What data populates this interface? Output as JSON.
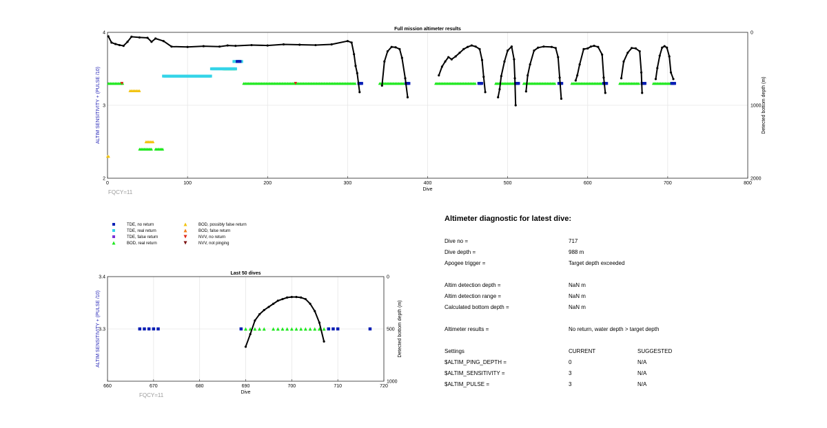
{
  "chart_data": [
    {
      "type": "scatter",
      "title": "Full mission altimeter results",
      "xlabel": "Dive",
      "ylabel": "ALTIM SENSITIVITY + (PULSE /10)",
      "ylabel_right": "Detected bottom depth (m)",
      "xlim": [
        0,
        800
      ],
      "ylim": [
        2,
        4
      ],
      "y2lim": [
        2000,
        0
      ],
      "xticks": [
        0,
        100,
        200,
        300,
        400,
        500,
        600,
        700,
        800
      ],
      "yticks": [
        2,
        3,
        4
      ],
      "y2ticks": [
        0,
        1000,
        2000
      ],
      "grid": true,
      "annotation": "FQCY=11",
      "depth_traces": [
        [
          [
            1,
            55
          ],
          [
            5,
            140
          ],
          [
            10,
            160
          ],
          [
            15,
            175
          ],
          [
            20,
            185
          ],
          [
            25,
            130
          ],
          [
            30,
            60
          ],
          [
            40,
            70
          ],
          [
            50,
            75
          ],
          [
            55,
            130
          ],
          [
            60,
            85
          ],
          [
            70,
            120
          ],
          [
            80,
            195
          ],
          [
            100,
            200
          ],
          [
            120,
            190
          ],
          [
            140,
            195
          ],
          [
            150,
            180
          ],
          [
            160,
            185
          ],
          [
            180,
            175
          ],
          [
            200,
            180
          ],
          [
            220,
            165
          ],
          [
            240,
            170
          ],
          [
            260,
            175
          ],
          [
            280,
            165
          ],
          [
            300,
            120
          ],
          [
            305,
            140
          ],
          [
            308,
            300
          ],
          [
            310,
            460
          ],
          [
            312,
            560
          ],
          [
            315,
            820
          ]
        ],
        [
          [
            343,
            730
          ],
          [
            346,
            400
          ],
          [
            350,
            260
          ],
          [
            355,
            200
          ],
          [
            360,
            205
          ],
          [
            365,
            230
          ],
          [
            368,
            350
          ],
          [
            372,
            630
          ],
          [
            375,
            890
          ]
        ],
        [
          [
            414,
            590
          ],
          [
            418,
            470
          ],
          [
            422,
            400
          ],
          [
            426,
            340
          ],
          [
            430,
            370
          ],
          [
            435,
            330
          ],
          [
            440,
            280
          ],
          [
            445,
            230
          ],
          [
            450,
            200
          ],
          [
            455,
            180
          ],
          [
            460,
            195
          ],
          [
            465,
            230
          ],
          [
            468,
            380
          ],
          [
            470,
            610
          ],
          [
            472,
            820
          ]
        ],
        [
          [
            488,
            890
          ],
          [
            490,
            780
          ],
          [
            492,
            600
          ],
          [
            496,
            400
          ],
          [
            500,
            250
          ],
          [
            505,
            195
          ],
          [
            508,
            370
          ],
          [
            509,
            630
          ],
          [
            510,
            1000
          ]
        ],
        [
          [
            523,
            810
          ],
          [
            525,
            590
          ],
          [
            528,
            440
          ],
          [
            533,
            250
          ],
          [
            538,
            210
          ],
          [
            545,
            195
          ],
          [
            555,
            200
          ],
          [
            560,
            215
          ],
          [
            563,
            340
          ],
          [
            565,
            620
          ],
          [
            567,
            910
          ]
        ],
        [
          [
            585,
            660
          ],
          [
            587,
            590
          ],
          [
            590,
            440
          ],
          [
            595,
            230
          ],
          [
            600,
            220
          ],
          [
            604,
            195
          ],
          [
            608,
            185
          ],
          [
            613,
            200
          ],
          [
            618,
            305
          ],
          [
            620,
            620
          ],
          [
            622,
            830
          ]
        ],
        [
          [
            642,
            630
          ],
          [
            645,
            400
          ],
          [
            650,
            280
          ],
          [
            655,
            215
          ],
          [
            660,
            220
          ],
          [
            665,
            260
          ],
          [
            667,
            550
          ],
          [
            668,
            830
          ]
        ],
        [
          [
            685,
            640
          ],
          [
            687,
            490
          ],
          [
            690,
            320
          ],
          [
            693,
            210
          ],
          [
            696,
            190
          ],
          [
            699,
            210
          ],
          [
            702,
            330
          ],
          [
            704,
            550
          ],
          [
            707,
            640
          ]
        ]
      ],
      "tde_no_return": [
        [
          314,
          3.3
        ],
        [
          373,
          3.3
        ],
        [
          464,
          3.3
        ],
        [
          510,
          3.3
        ],
        [
          564,
          3.3
        ],
        [
          620,
          3.3
        ],
        [
          668,
          3.3
        ],
        [
          705,
          3.3
        ],
        [
          162,
          3.6
        ]
      ],
      "tde_real_return_ranges": [
        [
          [
            70,
            130
          ],
          3.4
        ],
        [
          [
            130,
            160
          ],
          3.5
        ],
        [
          [
            158,
            168
          ],
          3.6
        ]
      ],
      "bod_real_return_ranges": [
        [
          [
            1,
            20
          ],
          3.3
        ],
        [
          [
            170,
            310
          ],
          3.3
        ],
        [
          [
            340,
            370
          ],
          3.3
        ],
        [
          [
            410,
            460
          ],
          3.3
        ],
        [
          [
            485,
            510
          ],
          3.3
        ],
        [
          [
            520,
            560
          ],
          3.3
        ],
        [
          [
            580,
            620
          ],
          3.3
        ],
        [
          [
            640,
            665
          ],
          3.3
        ],
        [
          [
            682,
            705
          ],
          3.3
        ],
        [
          [
            145,
            160
          ],
          3.5
        ],
        [
          [
            40,
            55
          ],
          2.4
        ],
        [
          [
            60,
            70
          ],
          2.4
        ]
      ],
      "bod_possibly_false_ranges": [
        [
          [
            28,
            40
          ],
          3.2
        ],
        [
          [
            48,
            58
          ],
          2.5
        ],
        [
          [
            0,
            2
          ],
          2.3
        ]
      ],
      "nvv_no_return": [
        [
          18,
          3.3
        ],
        [
          235,
          3.3
        ]
      ]
    },
    {
      "type": "scatter",
      "title": "Last 50 dives",
      "xlabel": "Dive",
      "ylabel": "ALTIM SENSITIVITY + (PULSE /10)",
      "ylabel_right": "Detected bottom depth (m)",
      "xlim": [
        660,
        720
      ],
      "ylim": [
        3.2,
        3.4
      ],
      "y2lim": [
        1000,
        0
      ],
      "xticks": [
        660,
        670,
        680,
        690,
        700,
        710,
        720
      ],
      "yticks": [
        3.3,
        3.4
      ],
      "y2ticks": [
        0,
        500,
        1000
      ],
      "grid": true,
      "annotation": "FQCY=11",
      "tde_no_return_x": [
        667,
        668,
        669,
        670,
        671,
        689,
        708,
        709,
        710,
        717
      ],
      "bod_real_return_x": [
        690,
        691,
        692,
        693,
        694,
        696,
        697,
        698,
        699,
        700,
        701,
        702,
        703,
        704,
        705,
        706,
        707
      ],
      "y": 3.3,
      "depth_trace": [
        [
          690,
          670
        ],
        [
          691,
          550
        ],
        [
          692,
          420
        ],
        [
          693,
          360
        ],
        [
          694,
          320
        ],
        [
          695,
          290
        ],
        [
          696,
          260
        ],
        [
          697,
          230
        ],
        [
          698,
          215
        ],
        [
          699,
          200
        ],
        [
          700,
          195
        ],
        [
          701,
          195
        ],
        [
          702,
          200
        ],
        [
          703,
          215
        ],
        [
          704,
          260
        ],
        [
          705,
          330
        ],
        [
          706,
          440
        ],
        [
          707,
          620
        ]
      ]
    }
  ],
  "legend": [
    {
      "label": "TDE, no return",
      "marker": "square",
      "color": "#0a1fb5"
    },
    {
      "label": "TDE, real return",
      "marker": "square",
      "color": "#35d4e8"
    },
    {
      "label": "TDE, false return",
      "marker": "square",
      "color": "#7b31d6"
    },
    {
      "label": "BOD, real return",
      "marker": "triangle-up",
      "color": "#1ee81e"
    },
    {
      "label": "BOD, possibly false return",
      "marker": "triangle-up",
      "color": "#f2c310"
    },
    {
      "label": "BOD, false return",
      "marker": "triangle-up",
      "color": "#f07f1a"
    },
    {
      "label": "NVV, no return",
      "marker": "triangle-down",
      "color": "#e0281b"
    },
    {
      "label": "NVV, not pinging",
      "marker": "triangle-down",
      "color": "#7a0e0e"
    }
  ],
  "diagnostic": {
    "title": "Altimeter diagnostic for latest dive:",
    "dive_no_label": "Dive no =",
    "dive_no_value": "717",
    "dive_depth_label": "Dive depth =",
    "dive_depth_value": "988 m",
    "apogee_label": "Apogee trigger =",
    "apogee_value": "Target depth exceeded",
    "altim_det_depth_label": "Altim detection depth =",
    "altim_det_depth_value": "NaN m",
    "altim_det_range_label": "Altim detection range =",
    "altim_det_range_value": "NaN m",
    "calc_bottom_label": "Calculated bottom depth =",
    "calc_bottom_value": "NaN m",
    "results_label": "Altimeter results =",
    "results_value": "No return, water depth > target depth",
    "settings_label": "Settings",
    "current_label": "CURRENT",
    "suggested_label": "SUGGESTED",
    "ping_depth_label": "$ALTIM_PING_DEPTH =",
    "ping_depth_current": "0",
    "ping_depth_suggested": "N/A",
    "sensitivity_label": "$ALTIM_SENSITIVITY =",
    "sensitivity_current": "3",
    "sensitivity_suggested": "N/A",
    "pulse_label": "$ALTIM_PULSE =",
    "pulse_current": "3",
    "pulse_suggested": "N/A"
  }
}
